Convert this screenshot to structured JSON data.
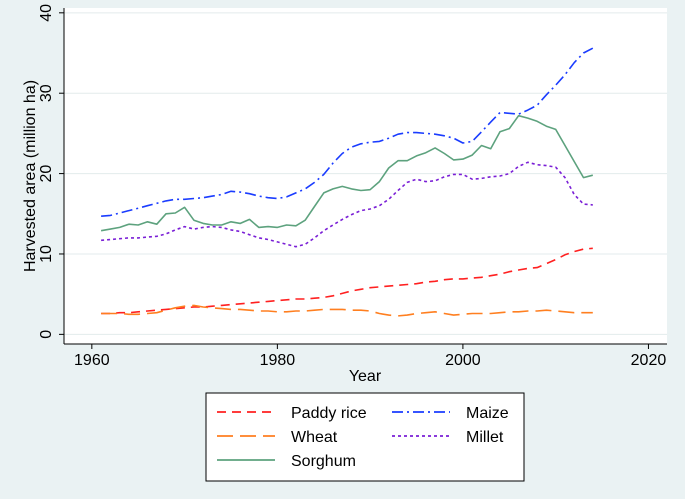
{
  "chart_data": {
    "type": "line",
    "title": "",
    "xlabel": "Year",
    "ylabel": "Harvested area (million ha)",
    "xlim": [
      1957,
      2022
    ],
    "ylim": [
      -1.2,
      40.6
    ],
    "xticks": [
      1960,
      1980,
      2000,
      2020
    ],
    "yticks": [
      0,
      10,
      20,
      30,
      40
    ],
    "grid": "horizontal",
    "legend_position": "bottom",
    "series": [
      {
        "name": "Paddy rice",
        "color": "#ff2020",
        "dash": "dash",
        "x": [
          1961,
          1962,
          1963,
          1964,
          1965,
          1966,
          1967,
          1968,
          1969,
          1970,
          1971,
          1972,
          1973,
          1974,
          1975,
          1976,
          1977,
          1978,
          1979,
          1980,
          1981,
          1982,
          1983,
          1984,
          1985,
          1986,
          1987,
          1988,
          1989,
          1990,
          1991,
          1992,
          1993,
          1994,
          1995,
          1996,
          1997,
          1998,
          1999,
          2000,
          2001,
          2002,
          2003,
          2004,
          2005,
          2006,
          2007,
          2008,
          2009,
          2010,
          2011,
          2012,
          2013,
          2014
        ],
        "y": [
          2.6,
          2.6,
          2.7,
          2.7,
          2.8,
          2.9,
          3.0,
          3.1,
          3.2,
          3.3,
          3.4,
          3.4,
          3.5,
          3.6,
          3.7,
          3.8,
          3.9,
          4.0,
          4.1,
          4.2,
          4.3,
          4.4,
          4.4,
          4.5,
          4.6,
          4.8,
          5.1,
          5.4,
          5.6,
          5.8,
          5.9,
          6.0,
          6.1,
          6.2,
          6.3,
          6.5,
          6.6,
          6.8,
          6.9,
          6.9,
          7.0,
          7.1,
          7.3,
          7.5,
          7.8,
          8.0,
          8.2,
          8.3,
          8.8,
          9.3,
          9.9,
          10.3,
          10.6,
          10.7
        ]
      },
      {
        "name": "Wheat",
        "color": "#ff7f20",
        "dash": "longdash",
        "x": [
          1961,
          1962,
          1963,
          1964,
          1965,
          1966,
          1967,
          1968,
          1969,
          1970,
          1971,
          1972,
          1973,
          1974,
          1975,
          1976,
          1977,
          1978,
          1979,
          1980,
          1981,
          1982,
          1983,
          1984,
          1985,
          1986,
          1987,
          1988,
          1989,
          1990,
          1991,
          1992,
          1993,
          1994,
          1995,
          1996,
          1997,
          1998,
          1999,
          2000,
          2001,
          2002,
          2003,
          2004,
          2005,
          2006,
          2007,
          2008,
          2009,
          2010,
          2011,
          2012,
          2013,
          2014
        ],
        "y": [
          2.6,
          2.6,
          2.6,
          2.5,
          2.5,
          2.6,
          2.7,
          3.0,
          3.3,
          3.5,
          3.6,
          3.4,
          3.3,
          3.2,
          3.1,
          3.1,
          3.0,
          2.9,
          2.9,
          2.8,
          2.8,
          2.9,
          2.9,
          3.0,
          3.1,
          3.1,
          3.1,
          3.0,
          3.0,
          2.9,
          2.6,
          2.4,
          2.3,
          2.4,
          2.6,
          2.7,
          2.8,
          2.6,
          2.4,
          2.5,
          2.6,
          2.6,
          2.6,
          2.7,
          2.8,
          2.8,
          2.9,
          2.9,
          3.0,
          2.9,
          2.8,
          2.7,
          2.7,
          2.7
        ]
      },
      {
        "name": "Sorghum",
        "color": "#5da27e",
        "dash": "solid",
        "x": [
          1961,
          1962,
          1963,
          1964,
          1965,
          1966,
          1967,
          1968,
          1969,
          1970,
          1971,
          1972,
          1973,
          1974,
          1975,
          1976,
          1977,
          1978,
          1979,
          1980,
          1981,
          1982,
          1983,
          1984,
          1985,
          1986,
          1987,
          1988,
          1989,
          1990,
          1991,
          1992,
          1993,
          1994,
          1995,
          1996,
          1997,
          1998,
          1999,
          2000,
          2001,
          2002,
          2003,
          2004,
          2005,
          2006,
          2007,
          2008,
          2009,
          2010,
          2011,
          2012,
          2013,
          2014
        ],
        "y": [
          12.9,
          13.1,
          13.3,
          13.7,
          13.6,
          14.0,
          13.7,
          15.0,
          15.1,
          15.8,
          14.2,
          13.8,
          13.6,
          13.6,
          14.0,
          13.8,
          14.3,
          13.3,
          13.4,
          13.3,
          13.6,
          13.5,
          14.2,
          15.9,
          17.6,
          18.1,
          18.4,
          18.1,
          17.9,
          18.0,
          19.0,
          20.7,
          21.6,
          21.6,
          22.2,
          22.6,
          23.2,
          22.5,
          21.7,
          21.8,
          22.3,
          23.5,
          23.1,
          25.2,
          25.6,
          27.2,
          26.9,
          26.5,
          25.9,
          25.5,
          23.5,
          21.5,
          19.5,
          19.8
        ]
      },
      {
        "name": "Maize",
        "color": "#1a3cff",
        "dash": "dashdot",
        "x": [
          1961,
          1962,
          1963,
          1964,
          1965,
          1966,
          1967,
          1968,
          1969,
          1970,
          1971,
          1972,
          1973,
          1974,
          1975,
          1976,
          1977,
          1978,
          1979,
          1980,
          1981,
          1982,
          1983,
          1984,
          1985,
          1986,
          1987,
          1988,
          1989,
          1990,
          1991,
          1992,
          1993,
          1994,
          1995,
          1996,
          1997,
          1998,
          1999,
          2000,
          2001,
          2002,
          2003,
          2004,
          2005,
          2006,
          2007,
          2008,
          2009,
          2010,
          2011,
          2012,
          2013,
          2014
        ],
        "y": [
          14.7,
          14.8,
          15.1,
          15.4,
          15.7,
          16.0,
          16.3,
          16.6,
          16.8,
          16.8,
          16.9,
          17.0,
          17.2,
          17.4,
          17.8,
          17.7,
          17.5,
          17.2,
          17.0,
          16.9,
          17.1,
          17.6,
          18.1,
          18.9,
          19.9,
          21.3,
          22.5,
          23.3,
          23.7,
          23.9,
          24.0,
          24.4,
          24.9,
          25.1,
          25.1,
          25.0,
          24.9,
          24.7,
          24.4,
          23.8,
          24.0,
          25.2,
          26.4,
          27.6,
          27.5,
          27.4,
          27.9,
          28.5,
          29.8,
          31.0,
          32.3,
          33.8,
          35.0,
          35.6
        ]
      },
      {
        "name": "Millet",
        "color": "#7a1fd6",
        "dash": "dot",
        "x": [
          1961,
          1962,
          1963,
          1964,
          1965,
          1966,
          1967,
          1968,
          1969,
          1970,
          1971,
          1972,
          1973,
          1974,
          1975,
          1976,
          1977,
          1978,
          1979,
          1980,
          1981,
          1982,
          1983,
          1984,
          1985,
          1986,
          1987,
          1988,
          1989,
          1990,
          1991,
          1992,
          1993,
          1994,
          1995,
          1996,
          1997,
          1998,
          1999,
          2000,
          2001,
          2002,
          2003,
          2004,
          2005,
          2006,
          2007,
          2008,
          2009,
          2010,
          2011,
          2012,
          2013,
          2014
        ],
        "y": [
          11.7,
          11.8,
          11.9,
          12.0,
          12.0,
          12.1,
          12.2,
          12.5,
          13.0,
          13.4,
          13.1,
          13.3,
          13.4,
          13.3,
          13.0,
          12.8,
          12.4,
          12.0,
          11.8,
          11.5,
          11.2,
          10.9,
          11.2,
          12.0,
          12.9,
          13.6,
          14.3,
          14.9,
          15.4,
          15.6,
          16.0,
          16.8,
          17.9,
          18.9,
          19.3,
          19.0,
          19.1,
          19.6,
          19.9,
          19.9,
          19.3,
          19.4,
          19.6,
          19.7,
          20.0,
          20.9,
          21.4,
          21.1,
          21.0,
          20.8,
          19.5,
          17.4,
          16.2,
          16.1
        ]
      }
    ],
    "legend": [
      {
        "series": "Paddy rice"
      },
      {
        "series": "Maize"
      },
      {
        "series": "Wheat"
      },
      {
        "series": "Millet"
      },
      {
        "series": "Sorghum"
      }
    ]
  }
}
